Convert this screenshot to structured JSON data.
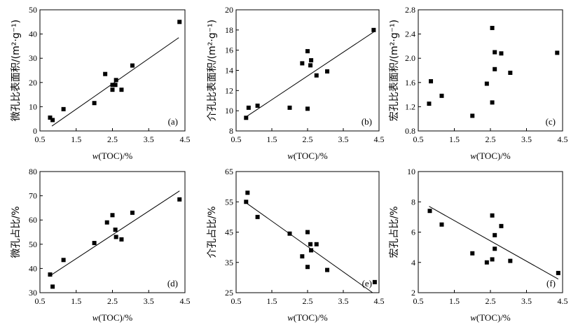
{
  "colors": {
    "ink": "#000000",
    "background": "#ffffff"
  },
  "chart_data": [
    {
      "id": "a",
      "type": "scatter",
      "panel_label": "(a)",
      "title": "",
      "xlabel": "w(TOC)/%",
      "xlabel_var": "w",
      "xlabel_rest": "(TOC)/%",
      "ylabel": "微孔比表面积/(m²·g⁻¹)",
      "xlim": [
        0.5,
        4.5
      ],
      "ylim": [
        0,
        50
      ],
      "xticks": [
        0.5,
        1.5,
        2.5,
        3.5,
        4.5
      ],
      "xtick_labels": [
        "0.5",
        "1.5",
        "2.5",
        "3.5",
        "4.5"
      ],
      "yticks": [
        0,
        10,
        20,
        30,
        40,
        50
      ],
      "ytick_labels": [
        "0",
        "10",
        "20",
        "30",
        "40",
        "50"
      ],
      "points": [
        [
          0.78,
          5.5
        ],
        [
          0.85,
          4.5
        ],
        [
          1.15,
          9.0
        ],
        [
          2.0,
          11.5
        ],
        [
          2.3,
          23.5
        ],
        [
          2.5,
          17.0
        ],
        [
          2.5,
          19.0
        ],
        [
          2.58,
          19.0
        ],
        [
          2.6,
          21.0
        ],
        [
          2.75,
          17.0
        ],
        [
          3.05,
          27.0
        ],
        [
          4.35,
          45.0
        ]
      ],
      "trendline": [
        [
          0.83,
          2.0
        ],
        [
          4.33,
          38.5
        ]
      ]
    },
    {
      "id": "b",
      "type": "scatter",
      "panel_label": "(b)",
      "title": "",
      "xlabel": "w(TOC)/%",
      "xlabel_var": "w",
      "xlabel_rest": "(TOC)/%",
      "ylabel": "介孔比表面积/(m²·g⁻¹)",
      "xlim": [
        0.5,
        4.5
      ],
      "ylim": [
        8,
        20
      ],
      "xticks": [
        0.5,
        1.5,
        2.5,
        3.5,
        4.5
      ],
      "xtick_labels": [
        "0.5",
        "1.5",
        "2.5",
        "3.5",
        "4.5"
      ],
      "yticks": [
        8,
        10,
        12,
        14,
        16,
        18,
        20
      ],
      "ytick_labels": [
        "8",
        "10",
        "12",
        "14",
        "16",
        "18",
        "20"
      ],
      "points": [
        [
          0.78,
          9.3
        ],
        [
          0.85,
          10.3
        ],
        [
          1.1,
          10.5
        ],
        [
          2.0,
          10.3
        ],
        [
          2.35,
          14.7
        ],
        [
          2.5,
          10.2
        ],
        [
          2.5,
          15.9
        ],
        [
          2.58,
          14.5
        ],
        [
          2.6,
          15.0
        ],
        [
          2.75,
          13.5
        ],
        [
          3.05,
          13.9
        ],
        [
          4.35,
          18.0
        ]
      ],
      "trendline": [
        [
          0.78,
          9.4
        ],
        [
          4.35,
          17.8
        ]
      ]
    },
    {
      "id": "c",
      "type": "scatter",
      "panel_label": "(c)",
      "title": "",
      "xlabel": "w(TOC)/%",
      "xlabel_var": "w",
      "xlabel_rest": "(TOC)/%",
      "ylabel": "宏孔比表面积/(m²·g⁻¹)",
      "xlim": [
        0.5,
        4.5
      ],
      "ylim": [
        0.8,
        2.8
      ],
      "xticks": [
        0.5,
        1.5,
        2.5,
        3.5,
        4.5
      ],
      "xtick_labels": [
        "0.5",
        "1.5",
        "2.5",
        "3.5",
        "4.5"
      ],
      "yticks": [
        0.8,
        1.2,
        1.6,
        2.0,
        2.4,
        2.8
      ],
      "ytick_labels": [
        "0.8",
        "1.2",
        "1.6",
        "2.0",
        "2.4",
        "2.8"
      ],
      "points": [
        [
          0.8,
          1.25
        ],
        [
          0.85,
          1.62
        ],
        [
          1.15,
          1.38
        ],
        [
          2.0,
          1.05
        ],
        [
          2.4,
          1.58
        ],
        [
          2.55,
          1.27
        ],
        [
          2.55,
          2.5
        ],
        [
          2.62,
          2.1
        ],
        [
          2.62,
          1.82
        ],
        [
          2.8,
          2.08
        ],
        [
          3.05,
          1.76
        ],
        [
          4.35,
          2.09
        ]
      ],
      "trendline": null
    },
    {
      "id": "d",
      "type": "scatter",
      "panel_label": "(d)",
      "title": "",
      "xlabel": "w(TOC)/%",
      "xlabel_var": "w",
      "xlabel_rest": "(TOC)/%",
      "ylabel": "微孔占比/%",
      "xlim": [
        0.5,
        4.5
      ],
      "ylim": [
        30,
        80
      ],
      "xticks": [
        0.5,
        1.5,
        2.5,
        3.5,
        4.5
      ],
      "xtick_labels": [
        "0.5",
        "1.5",
        "2.5",
        "3.5",
        "4.5"
      ],
      "yticks": [
        30,
        40,
        50,
        60,
        70,
        80
      ],
      "ytick_labels": [
        "30",
        "40",
        "50",
        "60",
        "70",
        "80"
      ],
      "points": [
        [
          0.78,
          37.5
        ],
        [
          0.85,
          32.5
        ],
        [
          1.15,
          43.5
        ],
        [
          2.0,
          50.5
        ],
        [
          2.35,
          59.0
        ],
        [
          2.5,
          62.0
        ],
        [
          2.58,
          56.0
        ],
        [
          2.6,
          53.0
        ],
        [
          2.75,
          52.0
        ],
        [
          3.05,
          63.0
        ],
        [
          4.35,
          68.5
        ]
      ],
      "trendline": [
        [
          0.78,
          37.0
        ],
        [
          4.35,
          72.0
        ]
      ]
    },
    {
      "id": "e",
      "type": "scatter",
      "panel_label": "(e)",
      "title": "",
      "xlabel": "w(TOC)/%",
      "xlabel_var": "w",
      "xlabel_rest": "(TOC)/%",
      "ylabel": "介孔占比/%",
      "xlim": [
        0.5,
        4.5
      ],
      "ylim": [
        25,
        65
      ],
      "xticks": [
        0.5,
        1.5,
        2.5,
        3.5,
        4.5
      ],
      "xtick_labels": [
        "0.5",
        "1.5",
        "2.5",
        "3.5",
        "4.5"
      ],
      "yticks": [
        25,
        35,
        45,
        55,
        65
      ],
      "ytick_labels": [
        "25",
        "35",
        "45",
        "55",
        "65"
      ],
      "points": [
        [
          0.78,
          55.0
        ],
        [
          0.82,
          58.0
        ],
        [
          1.1,
          50.0
        ],
        [
          2.0,
          44.5
        ],
        [
          2.35,
          37.0
        ],
        [
          2.5,
          33.5
        ],
        [
          2.5,
          45.0
        ],
        [
          2.58,
          41.0
        ],
        [
          2.6,
          39.0
        ],
        [
          2.75,
          41.0
        ],
        [
          3.05,
          32.5
        ],
        [
          4.38,
          28.5
        ]
      ],
      "trendline": [
        [
          0.8,
          54.5
        ],
        [
          4.32,
          25.0
        ]
      ]
    },
    {
      "id": "f",
      "type": "scatter",
      "panel_label": "(f)",
      "title": "",
      "xlabel": "w(TOC)/%",
      "xlabel_var": "w",
      "xlabel_rest": "(TOC)/%",
      "ylabel": "宏孔占比/%",
      "xlim": [
        0.5,
        4.5
      ],
      "ylim": [
        2,
        10
      ],
      "xticks": [
        0.5,
        1.5,
        2.5,
        3.5,
        4.5
      ],
      "xtick_labels": [
        "0.5",
        "1.5",
        "2.5",
        "3.5",
        "4.5"
      ],
      "yticks": [
        2,
        4,
        6,
        8,
        10
      ],
      "ytick_labels": [
        "2",
        "4",
        "6",
        "8",
        "10"
      ],
      "points": [
        [
          0.82,
          7.4
        ],
        [
          1.15,
          6.5
        ],
        [
          2.0,
          4.6
        ],
        [
          2.4,
          4.0
        ],
        [
          2.55,
          4.2
        ],
        [
          2.55,
          7.1
        ],
        [
          2.62,
          5.8
        ],
        [
          2.62,
          4.9
        ],
        [
          2.8,
          6.4
        ],
        [
          3.05,
          4.1
        ],
        [
          4.38,
          3.3
        ]
      ],
      "trendline": [
        [
          0.8,
          7.7
        ],
        [
          4.38,
          2.9
        ]
      ]
    }
  ]
}
